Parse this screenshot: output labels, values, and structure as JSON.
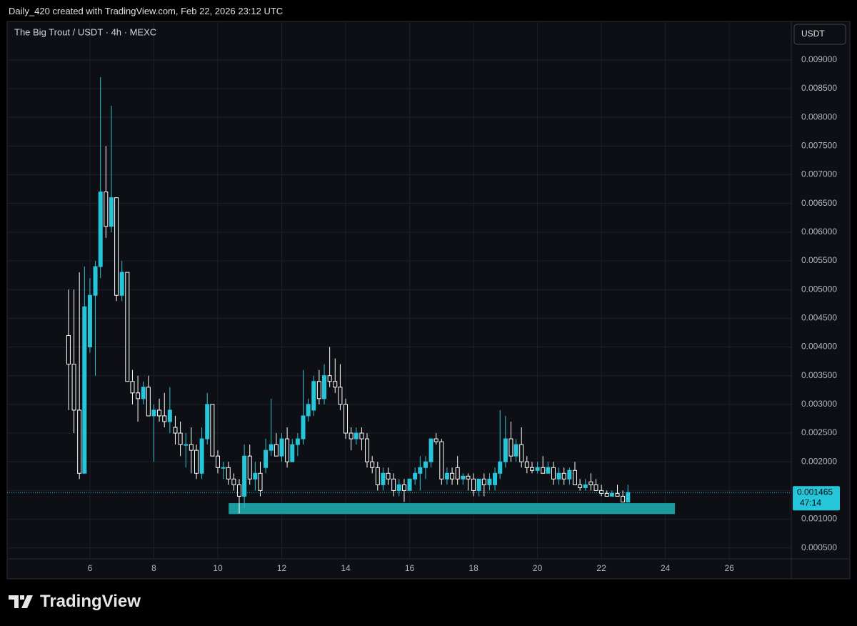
{
  "header": "Daily_420 created with TradingView.com, Feb 22, 2026 23:12 UTC",
  "footer_logo": "TradingView",
  "chart_data": {
    "type": "candlestick",
    "title": "The Big Trout / USDT · 4h · MEXC",
    "unit_button": "USDT",
    "up_color": "#26c6da",
    "down_color": "#ffffff",
    "grid": true,
    "xlim": [
      3.41,
      27.94
    ],
    "ylim": [
      0.00031,
      0.00967
    ],
    "xticks": [
      6,
      8,
      10,
      12,
      14,
      16,
      18,
      20,
      22,
      24,
      26
    ],
    "yticks": [
      {
        "value": 0.0005,
        "label": "0.000500"
      },
      {
        "value": 0.001,
        "label": "0.001000"
      },
      {
        "value": 0.0015,
        "label": "0.001500"
      },
      {
        "value": 0.002,
        "label": "0.002000"
      },
      {
        "value": 0.0025,
        "label": "0.002500"
      },
      {
        "value": 0.003,
        "label": "0.003000"
      },
      {
        "value": 0.0035,
        "label": "0.003500"
      },
      {
        "value": 0.004,
        "label": "0.004000"
      },
      {
        "value": 0.0045,
        "label": "0.004500"
      },
      {
        "value": 0.005,
        "label": "0.005000"
      },
      {
        "value": 0.0055,
        "label": "0.005500"
      },
      {
        "value": 0.006,
        "label": "0.006000"
      },
      {
        "value": 0.0065,
        "label": "0.006500"
      },
      {
        "value": 0.007,
        "label": "0.007000"
      },
      {
        "value": 0.0075,
        "label": "0.007500"
      },
      {
        "value": 0.008,
        "label": "0.008000"
      },
      {
        "value": 0.0085,
        "label": "0.008500"
      },
      {
        "value": 0.009,
        "label": "0.009000"
      }
    ],
    "x": [
      5.33,
      5.5,
      5.67,
      5.83,
      6,
      6.17,
      6.33,
      6.5,
      6.67,
      6.83,
      7,
      7.17,
      7.33,
      7.5,
      7.67,
      7.83,
      8,
      8.17,
      8.33,
      8.5,
      8.67,
      8.83,
      9,
      9.17,
      9.33,
      9.5,
      9.67,
      9.83,
      10,
      10.17,
      10.33,
      10.5,
      10.67,
      10.83,
      11,
      11.17,
      11.33,
      11.5,
      11.67,
      11.83,
      12,
      12.17,
      12.33,
      12.5,
      12.67,
      12.83,
      13,
      13.17,
      13.33,
      13.5,
      13.67,
      13.83,
      14,
      14.17,
      14.33,
      14.5,
      14.67,
      14.83,
      15,
      15.17,
      15.33,
      15.5,
      15.67,
      15.83,
      16,
      16.17,
      16.33,
      16.5,
      16.67,
      16.83,
      17,
      17.17,
      17.33,
      17.5,
      17.67,
      17.83,
      18,
      18.17,
      18.33,
      18.5,
      18.67,
      18.83,
      19,
      19.17,
      19.33,
      19.5,
      19.67,
      19.83,
      20,
      20.17,
      20.33,
      20.5,
      20.67,
      20.83,
      21,
      21.17,
      21.33,
      21.5,
      21.67,
      21.83,
      22,
      22.17,
      22.33,
      22.5,
      22.67,
      22.83
    ],
    "open": [
      0.0042,
      0.0037,
      0.0029,
      0.0018,
      0.004,
      0.0049,
      0.0054,
      0.0067,
      0.0061,
      0.0066,
      0.0049,
      0.0053,
      0.0034,
      0.0032,
      0.0031,
      0.0033,
      0.0028,
      0.0029,
      0.0028,
      0.0027,
      0.0026,
      0.0025,
      0.0023,
      0.0023,
      0.0022,
      0.0018,
      0.0024,
      0.003,
      0.0021,
      0.0019,
      0.0019,
      0.0017,
      0.0016,
      0.0014,
      0.0021,
      0.0017,
      0.0018,
      0.0019,
      0.0022,
      0.0023,
      0.0021,
      0.0024,
      0.002,
      0.0023,
      0.0024,
      0.0028,
      0.0029,
      0.0034,
      0.0031,
      0.0035,
      0.0034,
      0.0033,
      0.003,
      0.0025,
      0.0024,
      0.0025,
      0.0024,
      0.002,
      0.0019,
      0.0016,
      0.0018,
      0.0017,
      0.0015,
      0.0016,
      0.0015,
      0.0017,
      0.0018,
      0.0019,
      0.002,
      0.0024,
      0.00235,
      0.0017,
      0.0018,
      0.0019,
      0.0017,
      0.00175,
      0.0017,
      0.0015,
      0.0017,
      0.0016,
      0.0016,
      0.0018,
      0.002,
      0.0024,
      0.0021,
      0.0023,
      0.002,
      0.0019,
      0.00185,
      0.0019,
      0.0018,
      0.0019,
      0.0017,
      0.0018,
      0.0017,
      0.00185,
      0.0016,
      0.00155,
      0.00165,
      0.0016,
      0.0015,
      0.00145,
      0.0014,
      0.00145,
      0.0014,
      0.0013
    ],
    "high": [
      0.005,
      0.005,
      0.0053,
      0.0054,
      0.0052,
      0.0055,
      0.0087,
      0.0075,
      0.0082,
      0.0066,
      0.0055,
      0.0053,
      0.0036,
      0.0035,
      0.0034,
      0.0035,
      0.003,
      0.0031,
      0.0032,
      0.0033,
      0.0028,
      0.0027,
      0.0025,
      0.0026,
      0.0023,
      0.0026,
      0.0032,
      0.003,
      0.0022,
      0.002,
      0.002,
      0.0018,
      0.0017,
      0.0023,
      0.0023,
      0.002,
      0.002,
      0.0024,
      0.0031,
      0.0025,
      0.0025,
      0.0026,
      0.0024,
      0.0025,
      0.0036,
      0.0031,
      0.0035,
      0.0036,
      0.0037,
      0.004,
      0.0038,
      0.0037,
      0.0031,
      0.0026,
      0.0026,
      0.0026,
      0.0025,
      0.0021,
      0.002,
      0.0019,
      0.0019,
      0.0018,
      0.0017,
      0.0017,
      0.0017,
      0.0019,
      0.0021,
      0.0021,
      0.0024,
      0.0025,
      0.0024,
      0.0019,
      0.0019,
      0.0021,
      0.0018,
      0.0018,
      0.0018,
      0.0017,
      0.0018,
      0.0018,
      0.0019,
      0.0029,
      0.0028,
      0.0027,
      0.0024,
      0.0026,
      0.0021,
      0.002,
      0.002,
      0.0021,
      0.002,
      0.002,
      0.0019,
      0.0019,
      0.0019,
      0.002,
      0.0017,
      0.0017,
      0.0018,
      0.0017,
      0.0016,
      0.0015,
      0.0015,
      0.0016,
      0.0015,
      0.0016
    ],
    "low": [
      0.0029,
      0.0025,
      0.0017,
      0.0018,
      0.0039,
      0.0035,
      0.0052,
      0.0059,
      0.006,
      0.0048,
      0.0048,
      0.0034,
      0.003,
      0.0027,
      0.003,
      0.0028,
      0.002,
      0.0027,
      0.0026,
      0.0025,
      0.0023,
      0.0021,
      0.0019,
      0.0018,
      0.0017,
      0.0017,
      0.0023,
      0.0021,
      0.0018,
      0.0017,
      0.0016,
      0.0015,
      0.0011,
      0.0012,
      0.0016,
      0.0015,
      0.0014,
      0.0018,
      0.0021,
      0.0021,
      0.002,
      0.0019,
      0.002,
      0.0021,
      0.0023,
      0.0027,
      0.0028,
      0.003,
      0.003,
      0.0033,
      0.0032,
      0.0029,
      0.0024,
      0.0022,
      0.0023,
      0.0022,
      0.0019,
      0.0018,
      0.0015,
      0.0015,
      0.0016,
      0.0014,
      0.0014,
      0.0013,
      0.0015,
      0.0016,
      0.0015,
      0.0017,
      0.0019,
      0.0023,
      0.0016,
      0.0016,
      0.0016,
      0.0016,
      0.0016,
      0.0015,
      0.0014,
      0.0014,
      0.0014,
      0.0015,
      0.0015,
      0.0017,
      0.0019,
      0.002,
      0.002,
      0.0019,
      0.0018,
      0.0018,
      0.0018,
      0.0018,
      0.0018,
      0.0016,
      0.0016,
      0.0016,
      0.0016,
      0.0016,
      0.0015,
      0.0015,
      0.0015,
      0.0015,
      0.0014,
      0.0014,
      0.0014,
      0.0014,
      0.0013,
      0.0013
    ],
    "close": [
      0.0037,
      0.0029,
      0.0018,
      0.0047,
      0.0049,
      0.0054,
      0.0067,
      0.0061,
      0.0066,
      0.0049,
      0.0053,
      0.0034,
      0.0032,
      0.0031,
      0.0033,
      0.0028,
      0.0029,
      0.0028,
      0.0027,
      0.0029,
      0.0025,
      0.0023,
      0.0023,
      0.0022,
      0.0018,
      0.0024,
      0.003,
      0.0021,
      0.0019,
      0.0019,
      0.0017,
      0.0016,
      0.0014,
      0.0021,
      0.0017,
      0.0018,
      0.0015,
      0.0022,
      0.0023,
      0.0021,
      0.0024,
      0.002,
      0.0023,
      0.0024,
      0.0028,
      0.003,
      0.0034,
      0.0031,
      0.0035,
      0.0034,
      0.0033,
      0.003,
      0.0025,
      0.0024,
      0.0025,
      0.0024,
      0.002,
      0.0019,
      0.0016,
      0.0018,
      0.0017,
      0.0015,
      0.0016,
      0.0015,
      0.0017,
      0.0018,
      0.0019,
      0.002,
      0.0024,
      0.00235,
      0.0017,
      0.0018,
      0.0017,
      0.0017,
      0.00175,
      0.0017,
      0.0015,
      0.0017,
      0.0016,
      0.0017,
      0.0018,
      0.002,
      0.0024,
      0.0021,
      0.0023,
      0.002,
      0.0019,
      0.00185,
      0.0019,
      0.0018,
      0.0019,
      0.0017,
      0.0018,
      0.0017,
      0.00185,
      0.0016,
      0.00155,
      0.0016,
      0.0016,
      0.0015,
      0.00145,
      0.0014,
      0.00145,
      0.0014,
      0.0013,
      0.001465
    ],
    "last_price": 0.001465,
    "countdown": "47:14",
    "zone": {
      "x": [
        10.34,
        24.3
      ],
      "y": [
        0.00109,
        0.00128
      ],
      "color": "#1a9ba0"
    }
  }
}
